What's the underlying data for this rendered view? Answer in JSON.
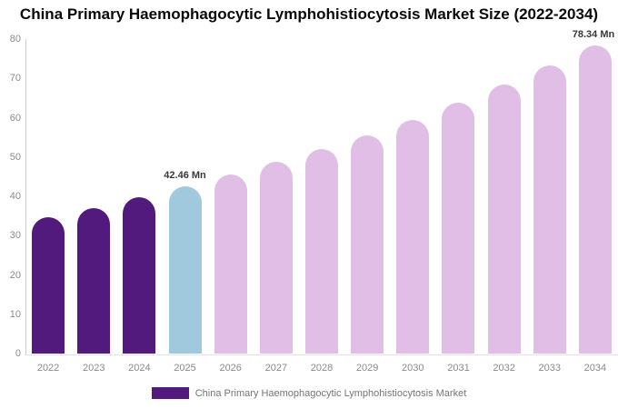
{
  "title": "China Primary Haemophagocytic Lymphohistiocytosis Market Size (2022-2034)",
  "legend": {
    "label": "China Primary Haemophagocytic Lymphohistiocytosis Market",
    "swatch_color": "#521A7C"
  },
  "colors": {
    "historical_bar": "#521A7C",
    "base_year_bar": "#A1C9DE",
    "forecast_bar": "#E1BEE6",
    "axis_text": "#8a8a8a",
    "value_label_text": "#383838",
    "y_axis_line": "#cdcdcd",
    "x_axis_line": "#e4e4e4"
  },
  "chart_data": {
    "type": "bar",
    "title": "China Primary Haemophagocytic Lymphohistiocytosis Market Size (2022-2034)",
    "xlabel": "",
    "ylabel": "",
    "unit": "Mn",
    "categories": [
      "2022",
      "2023",
      "2024",
      "2025",
      "2026",
      "2027",
      "2028",
      "2029",
      "2030",
      "2031",
      "2032",
      "2033",
      "2034"
    ],
    "values": [
      34.6,
      37.1,
      39.7,
      42.46,
      45.5,
      48.7,
      52.1,
      55.6,
      59.4,
      63.9,
      68.4,
      73.2,
      78.34
    ],
    "bar_colors": [
      "#521A7C",
      "#521A7C",
      "#521A7C",
      "#A1C9DE",
      "#E1BEE6",
      "#E1BEE6",
      "#E1BEE6",
      "#E1BEE6",
      "#E1BEE6",
      "#E1BEE6",
      "#E1BEE6",
      "#E1BEE6",
      "#E1BEE6"
    ],
    "point_labels": [
      {
        "category": "2025",
        "text": "42.46 Mn"
      },
      {
        "category": "2034",
        "text": "78.34 Mn"
      }
    ],
    "ylim": [
      0,
      80
    ],
    "ytick_step": 10,
    "yticks": [
      "0",
      "10",
      "20",
      "30",
      "40",
      "50",
      "60",
      "70",
      "80"
    ],
    "grid": false,
    "legend_position": "bottom",
    "series": [
      {
        "name": "China Primary Haemophagocytic Lymphohistiocytosis Market",
        "values": [
          34.6,
          37.1,
          39.7,
          42.46,
          45.5,
          48.7,
          52.1,
          55.6,
          59.4,
          63.9,
          68.4,
          73.2,
          78.34
        ]
      }
    ]
  }
}
